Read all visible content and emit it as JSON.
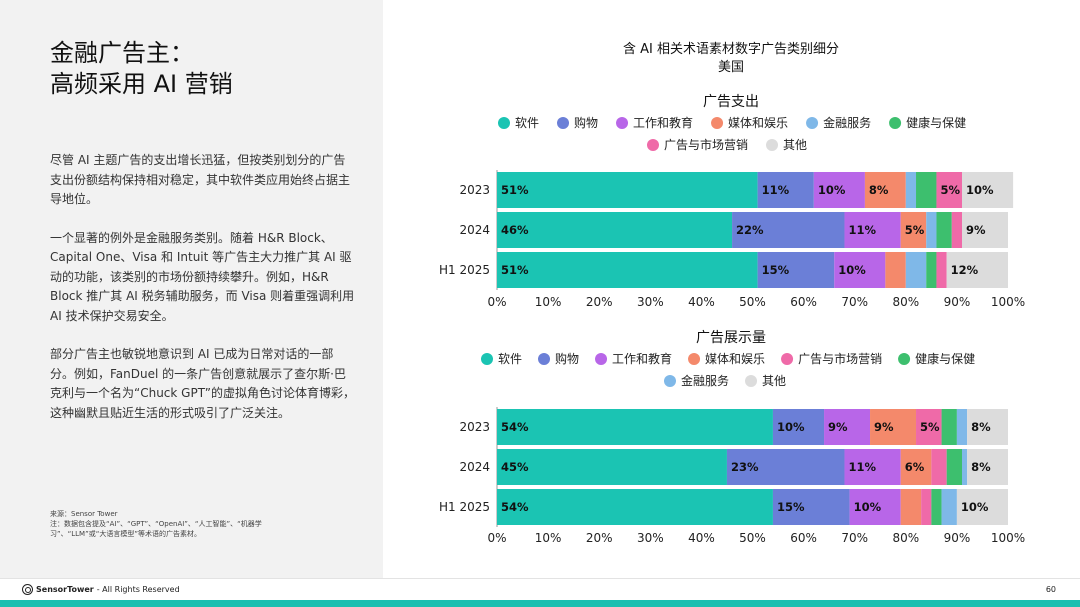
{
  "page": {
    "title_line1": "金融广告主：",
    "title_line2": "高频采用 AI 营销",
    "paragraphs": [
      "尽管 AI 主题广告的支出增长迅猛，但按类别划分的广告支出份额结构保持相对稳定，其中软件类应用始终占据主导地位。",
      "一个显著的例外是金融服务类别。随着 H&R Block、Capital One、Visa 和 Intuit 等广告主大力推广其 AI 驱动的功能，该类别的市场份额持续攀升。例如，H&R Block 推广其 AI 税务辅助服务，而 Visa 则着重强调利用 AI 技术保护交易安全。",
      "部分广告主也敏锐地意识到 AI 已成为日常对话的一部分。例如，FanDuel 的一条广告创意就展示了查尔斯·巴克利与一个名为“Chuck GPT”的虚拟角色讨论体育博彩，这种幽默且贴近生活的形式吸引了广泛关注。"
    ],
    "source_label": "来源：Sensor Tower",
    "note": "注：数据包含提及“AI”、“GPT”、“OpenAI”、“人工智能”、“机器学习”、“LLM”或“大语言模型”等术语的广告素材。",
    "footer_brand": "SensorTower",
    "footer_rights": "- All Rights Reserved",
    "page_number": "60"
  },
  "chart_header": {
    "title": "含 AI 相关术语素材数字广告类别细分",
    "subtitle": "美国"
  },
  "colors": {
    "软件": "#1bc4b3",
    "购物": "#6b7fd7",
    "工作和教育": "#b866e8",
    "媒体和娱乐": "#f4896b",
    "金融服务": "#7fb8e8",
    "健康与保健": "#3dbf6e",
    "广告与市场营销": "#ef6aa8",
    "其他": "#dcdcdc"
  },
  "chart_data": [
    {
      "type": "bar",
      "orientation": "horizontal",
      "stacked": true,
      "title": "广告支出",
      "legend_rows": [
        [
          "软件",
          "购物",
          "工作和教育",
          "媒体和娱乐",
          "金融服务",
          "健康与保健"
        ],
        [
          "广告与市场营销",
          "其他"
        ]
      ],
      "categories": [
        "2023",
        "2024",
        "H1 2025"
      ],
      "xlim": [
        0,
        100
      ],
      "xticks": [
        "0%",
        "10%",
        "20%",
        "30%",
        "40%",
        "50%",
        "60%",
        "70%",
        "80%",
        "90%",
        "100%"
      ],
      "series": [
        {
          "name": "软件",
          "values": [
            51,
            46,
            51
          ],
          "labels": [
            "51%",
            "46%",
            "51%"
          ]
        },
        {
          "name": "购物",
          "values": [
            11,
            22,
            15
          ],
          "labels": [
            "11%",
            "22%",
            "15%"
          ]
        },
        {
          "name": "工作和教育",
          "values": [
            10,
            11,
            10
          ],
          "labels": [
            "10%",
            "11%",
            "10%"
          ]
        },
        {
          "name": "媒体和娱乐",
          "values": [
            8,
            5,
            4
          ],
          "labels": [
            "8%",
            "5%",
            ""
          ]
        },
        {
          "name": "金融服务",
          "values": [
            2,
            2,
            4
          ],
          "labels": [
            "",
            "",
            ""
          ]
        },
        {
          "name": "健康与保健",
          "values": [
            4,
            3,
            2
          ],
          "labels": [
            "",
            "",
            ""
          ]
        },
        {
          "name": "广告与市场营销",
          "values": [
            5,
            2,
            2
          ],
          "labels": [
            "5%",
            "",
            ""
          ]
        },
        {
          "name": "其他",
          "values": [
            10,
            9,
            12
          ],
          "labels": [
            "10%",
            "9%",
            "12%"
          ]
        }
      ]
    },
    {
      "type": "bar",
      "orientation": "horizontal",
      "stacked": true,
      "title": "广告展示量",
      "legend_rows": [
        [
          "软件",
          "购物",
          "工作和教育",
          "媒体和娱乐",
          "广告与市场营销",
          "健康与保健"
        ],
        [
          "金融服务",
          "其他"
        ]
      ],
      "categories": [
        "2023",
        "2024",
        "H1 2025"
      ],
      "xlim": [
        0,
        100
      ],
      "xticks": [
        "0%",
        "10%",
        "20%",
        "30%",
        "40%",
        "50%",
        "60%",
        "70%",
        "80%",
        "90%",
        "100%"
      ],
      "series": [
        {
          "name": "软件",
          "values": [
            54,
            45,
            54
          ],
          "labels": [
            "54%",
            "45%",
            "54%"
          ]
        },
        {
          "name": "购物",
          "values": [
            10,
            23,
            15
          ],
          "labels": [
            "10%",
            "23%",
            "15%"
          ]
        },
        {
          "name": "工作和教育",
          "values": [
            9,
            11,
            10
          ],
          "labels": [
            "9%",
            "11%",
            "10%"
          ]
        },
        {
          "name": "媒体和娱乐",
          "values": [
            9,
            6,
            4
          ],
          "labels": [
            "9%",
            "6%",
            ""
          ]
        },
        {
          "name": "广告与市场营销",
          "values": [
            5,
            3,
            2
          ],
          "labels": [
            "5%",
            "",
            ""
          ]
        },
        {
          "name": "健康与保健",
          "values": [
            3,
            3,
            2
          ],
          "labels": [
            "",
            "",
            ""
          ]
        },
        {
          "name": "金融服务",
          "values": [
            2,
            1,
            3
          ],
          "labels": [
            "",
            "",
            ""
          ]
        },
        {
          "name": "其他",
          "values": [
            8,
            8,
            10
          ],
          "labels": [
            "8%",
            "8%",
            "10%"
          ]
        }
      ]
    }
  ]
}
